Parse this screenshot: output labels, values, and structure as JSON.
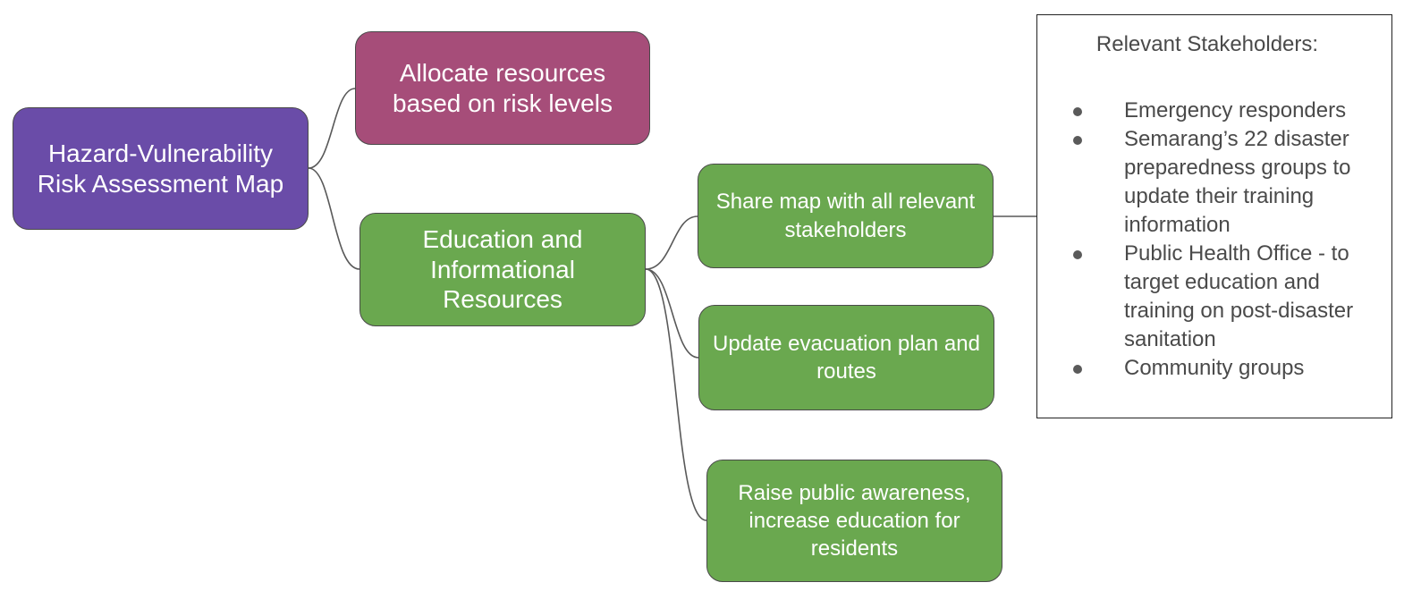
{
  "diagram": {
    "root": {
      "label": "Hazard-Vulnerability Risk Assessment Map",
      "color": "#6a4ca8"
    },
    "allocate": {
      "label": "Allocate resources based on risk levels",
      "color": "#a64d79"
    },
    "education": {
      "label": "Education and Informational Resources",
      "color": "#6aa84f"
    },
    "share": {
      "label": "Share map with all relevant stakeholders",
      "color": "#6aa84f"
    },
    "evacuation": {
      "label": "Update evacuation plan and routes",
      "color": "#6aa84f"
    },
    "awareness": {
      "label": "Raise public awareness, increase education for residents",
      "color": "#6aa84f"
    },
    "stakeholders": {
      "title": "Relevant Stakeholders:",
      "items": [
        "Emergency responders",
        "Semarang’s 22 disaster preparedness groups to update their training information",
        "Public Health Office - to target education and training on post-disaster sanitation",
        "Community groups"
      ]
    }
  }
}
